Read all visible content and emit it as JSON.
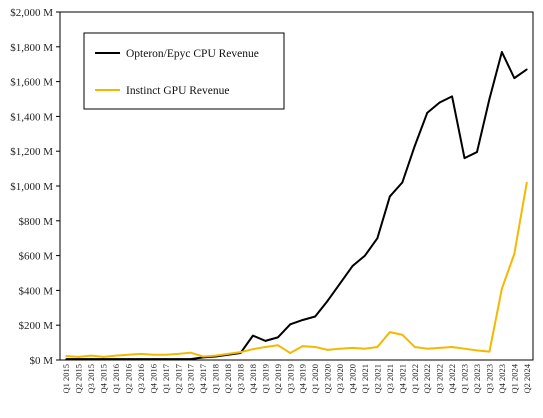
{
  "chart_data": {
    "type": "line",
    "x": [
      "Q1 2015",
      "Q2 2015",
      "Q3 2015",
      "Q4 2015",
      "Q1 2016",
      "Q2 2016",
      "Q3 2016",
      "Q4 2016",
      "Q1 2017",
      "Q2 2017",
      "Q3 2017",
      "Q4 2017",
      "Q1 2018",
      "Q2 2018",
      "Q3 2018",
      "Q4 2018",
      "Q1 2019",
      "Q2 2019",
      "Q3 2019",
      "Q4 2019",
      "Q1 2020",
      "Q2 2020",
      "Q3 2020",
      "Q4 2020",
      "Q1 2021",
      "Q2 2021",
      "Q3 2021",
      "Q4 2021",
      "Q1 2022",
      "Q2 2022",
      "Q3 2022",
      "Q4 2022",
      "Q1 2023",
      "Q2 2023",
      "Q3 2023",
      "Q4 2023",
      "Q1 2024",
      "Q2 2024"
    ],
    "series": [
      {
        "name": "Opteron/Epyc CPU Revenue",
        "color": "#000000",
        "values": [
          5,
          5,
          5,
          5,
          5,
          5,
          5,
          5,
          5,
          5,
          5,
          15,
          20,
          30,
          40,
          140,
          110,
          130,
          205,
          230,
          250,
          340,
          440,
          540,
          600,
          700,
          940,
          1020,
          1230,
          1420,
          1480,
          1515,
          1160,
          1195,
          1500,
          1770,
          1620,
          1670
        ]
      },
      {
        "name": "Instinct GPU Revenue",
        "color": "#F5B800",
        "values": [
          22,
          18,
          25,
          18,
          25,
          30,
          35,
          30,
          30,
          35,
          42,
          20,
          25,
          35,
          45,
          62,
          75,
          85,
          40,
          80,
          75,
          58,
          65,
          70,
          65,
          75,
          160,
          145,
          75,
          65,
          70,
          75,
          65,
          55,
          48,
          410,
          610,
          1020
        ]
      }
    ],
    "yticks": [
      "$0 M",
      "$200 M",
      "$400 M",
      "$600 M",
      "$800 M",
      "$1,000 M",
      "$1,200 M",
      "$1,400 M",
      "$1,600 M",
      "$1,800 M",
      "$2,000 M"
    ],
    "ylim": [
      0,
      2000
    ],
    "legend_position": "top-left",
    "grid": false
  }
}
